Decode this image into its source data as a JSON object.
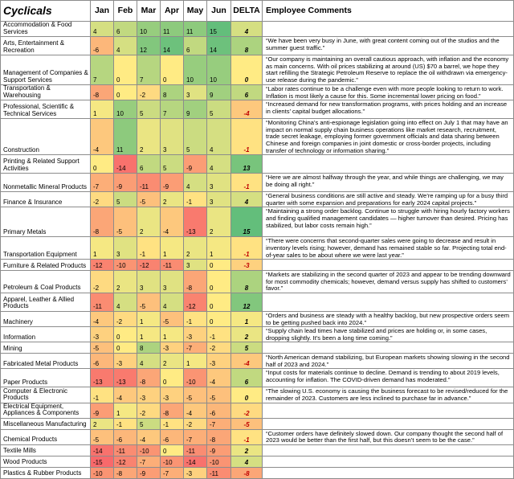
{
  "chart_data": {
    "type": "table",
    "title": "Cyclicals",
    "columns": [
      "Jan",
      "Feb",
      "Mar",
      "Apr",
      "May",
      "Jun",
      "DELTA",
      "Employee Comments"
    ],
    "rows": [
      {
        "industry": "Accommodation & Food Services",
        "values": [
          4,
          6,
          10,
          11,
          11,
          15
        ],
        "delta": "4",
        "comment": ""
      },
      {
        "industry": "Arts, Entertainment & Recreation",
        "values": [
          -6,
          4,
          12,
          14,
          6,
          14
        ],
        "delta": "8",
        "comment": "“We have been very busy in June, with great content coming out of the studios and the summer guest traffic.”"
      },
      {
        "industry": "Management of Companies & Support Services",
        "values": [
          7,
          0,
          7,
          0,
          10,
          10
        ],
        "delta": "0",
        "comment": "“Our company is maintaining an overall cautious approach, with inflation and the economy as main concerns. With oil prices stabilizing at around (US) $70 a barrel, we hope they start refilling the Strategic Petroleum Reserve to replace the oil withdrawn via emergency-use release during the pandemic.”"
      },
      {
        "industry": "Transportation & Warehousing",
        "values": [
          -8,
          0,
          -2,
          8,
          3,
          9
        ],
        "delta": "6",
        "comment": "“Labor rates continue to be a challenge even with more people looking to return to work. Inflation is most likely a cause for this. Some incremental lower pricing on food.”"
      },
      {
        "industry": "Professional, Scientific & Technical Services",
        "values": [
          1,
          10,
          5,
          7,
          9,
          5
        ],
        "delta": "-4",
        "comment": "“Increased demand for new transformation programs, with prices holding and an increase in clients’ capital budget allocations.”"
      },
      {
        "industry": "Construction",
        "values": [
          -4,
          11,
          2,
          3,
          5,
          4
        ],
        "delta": "-1",
        "comment": "“Monitoring China’s anti-espionage legislation going into effect on July 1 that may have an impact on normal supply chain business operations like market research, recruitment, trade secret leakage, employing former government officials and data sharing between Chinese and foreign companies in joint domestic or cross-border projects, including transfer of technology or information sharing.”"
      },
      {
        "industry": "Printing & Related Support Activities",
        "values": [
          0,
          -14,
          6,
          5,
          -9,
          4
        ],
        "delta": "13",
        "comment": ""
      },
      {
        "industry": "Nonmetallic Mineral Products",
        "values": [
          -7,
          -9,
          -11,
          -9,
          4,
          3
        ],
        "delta": "-1",
        "comment": "“Here we are almost halfway through the year, and while things are challenging, we may be doing all right.”"
      },
      {
        "industry": "Finance & Insurance",
        "values": [
          -2,
          5,
          -5,
          2,
          -1,
          3
        ],
        "delta": "4",
        "comment": "“General business conditions are still active and steady. We’re ramping up for a busy third quarter with some expansion and preparations for early 2024 capital projects.”"
      },
      {
        "industry": "Primary Metals",
        "values": [
          -8,
          -5,
          2,
          -4,
          -13,
          2
        ],
        "delta": "15",
        "comment": "“Maintaining a strong order backlog. Continue to struggle with hiring hourly factory workers and finding qualified management candidates — higher turnover than desired. Pricing has stabilized, but labor costs remain high.”"
      },
      {
        "industry": "Transportation Equipment",
        "values": [
          1,
          3,
          -1,
          1,
          2,
          1
        ],
        "delta": "-1",
        "comment": "“There were concerns that second-quarter sales were going to decrease and result in inventory levels rising; however, demand has remained stable so far. Projecting total end-of-year sales to be about where we were last year.”"
      },
      {
        "industry": "Furniture & Related Products",
        "values": [
          -12,
          -10,
          -12,
          -11,
          3,
          0
        ],
        "delta": "-3",
        "comment": ""
      },
      {
        "industry": "Petroleum & Coal Products",
        "values": [
          -2,
          2,
          3,
          3,
          -8,
          0
        ],
        "delta": "8",
        "comment": "“Markets are stabilizing in the second quarter of 2023 and appear to be trending downward for most commodity chemicals; however, demand versus supply has shifted to customers’ favor.”"
      },
      {
        "industry": "Apparel, Leather & Allied Products",
        "values": [
          -11,
          4,
          -5,
          4,
          -12,
          0
        ],
        "delta": "12",
        "comment": ""
      },
      {
        "industry": "Machinery",
        "values": [
          -4,
          -2,
          1,
          -5,
          -1,
          0
        ],
        "delta": "1",
        "comment": "“Orders and business are steady with a healthy backlog, but new prospective orders seem to be getting pushed back into 2024.”"
      },
      {
        "industry": "Information",
        "values": [
          -3,
          0,
          1,
          1,
          -3,
          -1
        ],
        "delta": "2",
        "comment": "“Supply chain lead times have stabilized and prices are holding or, in some cases, dropping slightly. It’s been a long time coming.”"
      },
      {
        "industry": "Mining",
        "values": [
          -5,
          0,
          8,
          -3,
          -7,
          -2
        ],
        "delta": "5",
        "comment": ""
      },
      {
        "industry": "Fabricated Metal Products",
        "values": [
          -6,
          -3,
          4,
          2,
          1,
          -3
        ],
        "delta": "-4",
        "comment": "“North American demand stabilizing, but European markets showing slowing in the second half of 2023 and 2024.”"
      },
      {
        "industry": "Paper Products",
        "values": [
          -13,
          -13,
          -8,
          0,
          -10,
          -4
        ],
        "delta": "6",
        "comment": "“Input costs for materials continue to decline. Demand is trending to about 2019 levels, accounting for inflation. The COVID-driven demand has moderated.”"
      },
      {
        "industry": "Computer & Electronic Products",
        "values": [
          -1,
          -4,
          -3,
          -3,
          -5,
          -5
        ],
        "delta": "0",
        "comment": "“The slowing U.S. economy is causing the business forecast to be revised/reduced for the remainder of 2023. Customers are less inclined to purchase far in advance.”"
      },
      {
        "industry": "Electrical Equipment, Appliances & Components",
        "values": [
          -9,
          1,
          -2,
          -8,
          -4,
          -6
        ],
        "delta": "-2",
        "comment": ""
      },
      {
        "industry": "Miscellaneous Manufacturing",
        "values": [
          2,
          -1,
          5,
          -1,
          -2,
          -7
        ],
        "delta": "-5",
        "comment": ""
      },
      {
        "industry": "Chemical Products",
        "values": [
          -5,
          -6,
          -4,
          -6,
          -7,
          -8
        ],
        "delta": "-1",
        "comment": "“Customer orders have definitely slowed down. Our company thought the second half of 2023 would be better than the first half, but this doesn’t seem to be the case.”"
      },
      {
        "industry": "Textile Mills",
        "values": [
          -14,
          -11,
          -10,
          0,
          -11,
          -9
        ],
        "delta": "2",
        "comment": ""
      },
      {
        "industry": "Wood Products",
        "values": [
          -15,
          -12,
          -7,
          -10,
          -14,
          -10
        ],
        "delta": "4",
        "comment": ""
      },
      {
        "industry": "Plastics & Rubber Products",
        "values": [
          -10,
          -8,
          -9,
          -7,
          -3,
          -11
        ],
        "delta": "-8",
        "comment": ""
      }
    ],
    "colors": {
      "high": "#63be7b",
      "mid": "#ffeb84",
      "low": "#f8696b",
      "delta_neg": "#c00000"
    }
  }
}
